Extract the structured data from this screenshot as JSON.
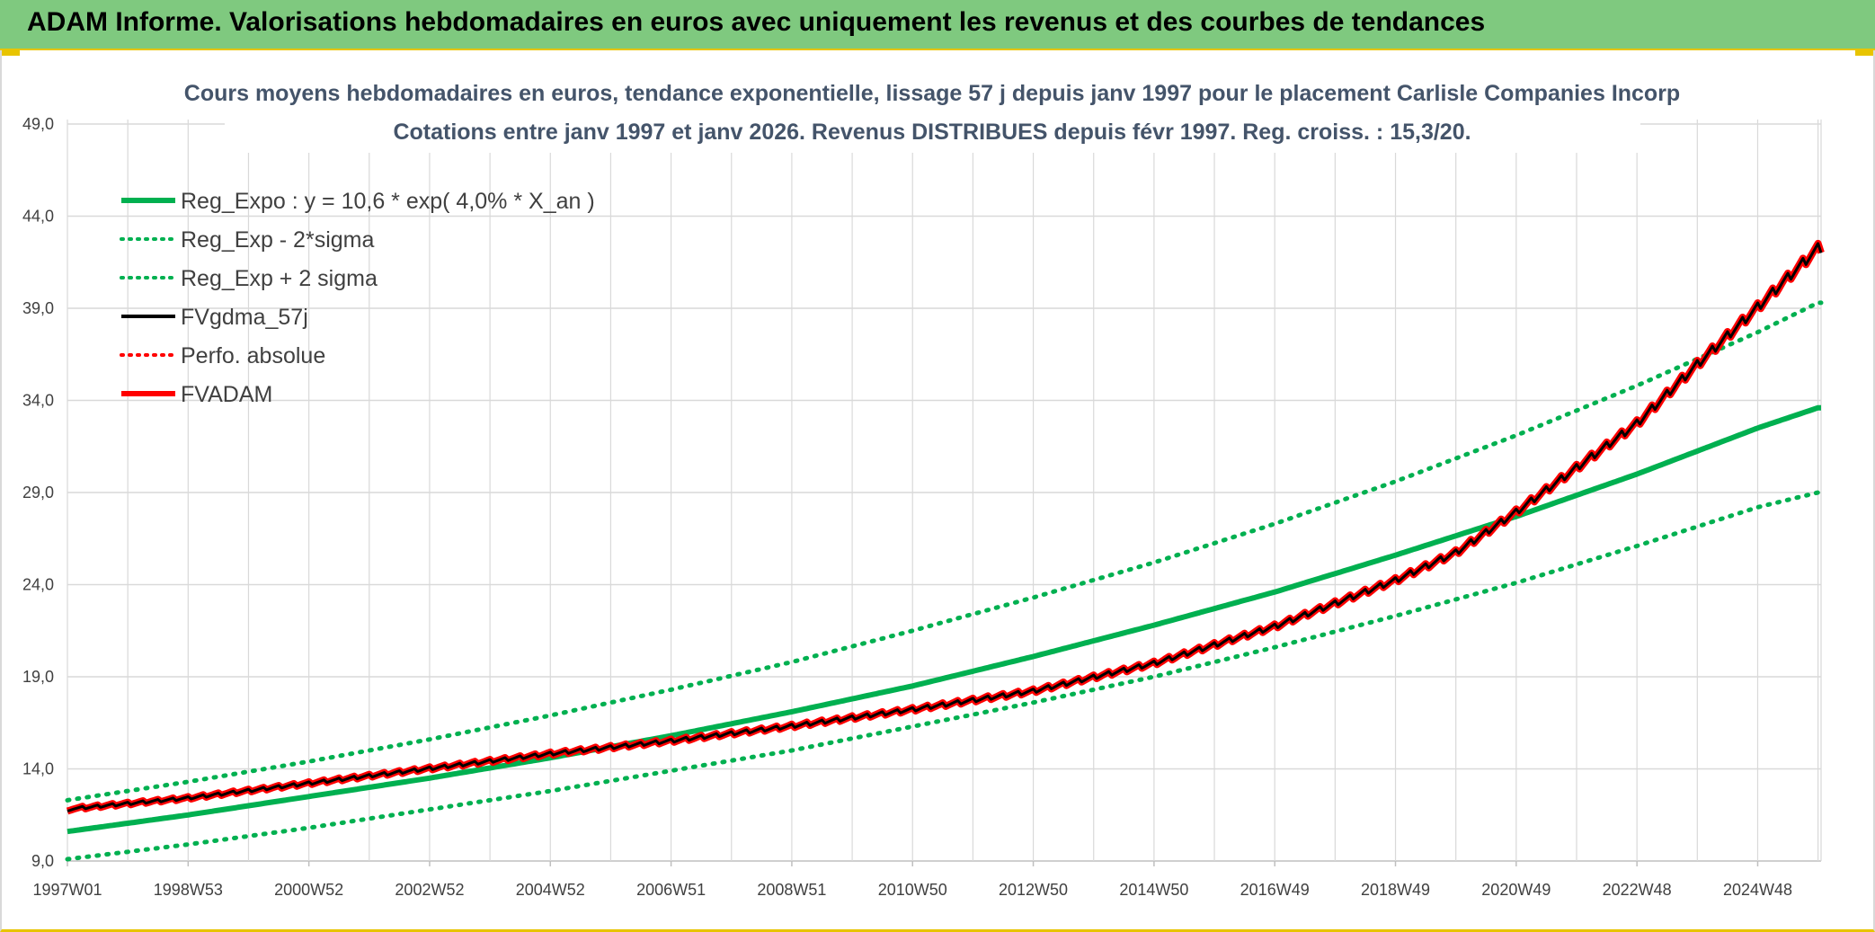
{
  "banner": {
    "title": "ADAM Informe. Valorisations hebdomadaires en euros avec uniquement les revenus et des courbes de tendances"
  },
  "colors": {
    "banner_bg": "#7fc97f",
    "accent_gold": "#e8c400",
    "green": "#00b050",
    "red": "#ff0000",
    "black": "#000000",
    "title_text": "#44546a",
    "grid": "#d9d9d9"
  },
  "chart_data": {
    "type": "line",
    "title_line1": "Cours moyens hebdomadaires en euros, tendance exponentielle, lissage 57 j depuis janv 1997 pour le placement Carlisle Companies Incorp",
    "title_line2": "Cotations entre janv 1997 et janv 2026. Revenus DISTRIBUES depuis févr 1997. Reg. croiss. : 15,3/20.",
    "ylim": [
      9.0,
      49.0
    ],
    "y_ticks": [
      "9,0",
      "14,0",
      "19,0",
      "24,0",
      "29,0",
      "34,0",
      "39,0",
      "44,0",
      "49,0"
    ],
    "y_tick_values": [
      9,
      14,
      19,
      24,
      29,
      34,
      39,
      44,
      49
    ],
    "x_range_years": [
      1997.0,
      2026.05
    ],
    "x_ticks": [
      "1997W01",
      "1998W53",
      "2000W52",
      "2002W52",
      "2004W52",
      "2006W51",
      "2008W51",
      "2010W50",
      "2012W50",
      "2014W50",
      "2016W49",
      "2018W49",
      "2020W49",
      "2022W48",
      "2024W48"
    ],
    "x_tick_years": [
      1997.0,
      1999.0,
      2001.0,
      2003.0,
      2005.0,
      2007.0,
      2009.0,
      2011.0,
      2013.0,
      2015.0,
      2017.0,
      2019.0,
      2021.0,
      2023.0,
      2025.0
    ],
    "legend_position": "top-left",
    "legend": [
      {
        "label": "Reg_Expo : y = 10,6 * exp( 4,0% *  X_an )",
        "color": "#00b050",
        "style": "solid"
      },
      {
        "label": "Reg_Exp - 2*sigma",
        "color": "#00b050",
        "style": "dotted"
      },
      {
        "label": "Reg_Exp + 2 sigma",
        "color": "#00b050",
        "style": "dotted"
      },
      {
        "label": "FVgdma_57j",
        "color": "#000000",
        "style": "solid"
      },
      {
        "label": "Perfo. absolue",
        "color": "#ff0000",
        "style": "dotted"
      },
      {
        "label": "FVADAM",
        "color": "#ff0000",
        "style": "solid"
      }
    ],
    "series": [
      {
        "name": "Reg_Expo",
        "x": [
          1997,
          1999,
          2001,
          2003,
          2005,
          2007,
          2009,
          2011,
          2013,
          2015,
          2017,
          2019,
          2021,
          2023,
          2025,
          2026
        ],
        "values": [
          10.6,
          11.5,
          12.5,
          13.5,
          14.6,
          15.8,
          17.1,
          18.5,
          20.1,
          21.8,
          23.6,
          25.6,
          27.7,
          30.0,
          32.5,
          33.6
        ]
      },
      {
        "name": "Reg_Exp - 2*sigma",
        "x": [
          1997,
          1999,
          2001,
          2003,
          2005,
          2007,
          2009,
          2011,
          2013,
          2015,
          2017,
          2019,
          2021,
          2023,
          2025,
          2026
        ],
        "values": [
          9.1,
          9.9,
          10.8,
          11.8,
          12.8,
          13.9,
          15.0,
          16.3,
          17.6,
          19.0,
          20.6,
          22.3,
          24.1,
          26.1,
          28.2,
          29.0
        ]
      },
      {
        "name": "Reg_Exp + 2 sigma",
        "x": [
          1997,
          1999,
          2001,
          2003,
          2005,
          2007,
          2009,
          2011,
          2013,
          2015,
          2017,
          2019,
          2021,
          2023,
          2025,
          2026
        ],
        "values": [
          12.3,
          13.3,
          14.4,
          15.6,
          16.9,
          18.3,
          19.8,
          21.5,
          23.3,
          25.2,
          27.3,
          29.6,
          32.1,
          34.8,
          37.7,
          39.3
        ]
      },
      {
        "name": "FVgdma_57j",
        "x": [
          1997,
          1999,
          2001,
          2003,
          2005,
          2007,
          2009,
          2011,
          2013,
          2015,
          2017,
          2019,
          2020,
          2021,
          2022,
          2023,
          2024,
          2025,
          2026
        ],
        "values": [
          11.8,
          12.4,
          13.2,
          14.0,
          14.8,
          15.5,
          16.3,
          17.2,
          18.2,
          19.7,
          21.7,
          24.2,
          25.7,
          27.9,
          30.3,
          32.7,
          35.9,
          39.0,
          42.2
        ]
      },
      {
        "name": "Perfo. absolue",
        "x": [
          1997,
          1999,
          2001,
          2003,
          2005,
          2007,
          2009,
          2011,
          2013,
          2015,
          2017,
          2019,
          2020,
          2021,
          2022,
          2023,
          2024,
          2025,
          2026
        ],
        "values": [
          11.8,
          12.4,
          13.2,
          14.0,
          14.8,
          15.5,
          16.3,
          17.2,
          18.2,
          19.7,
          21.7,
          24.2,
          25.7,
          27.9,
          30.3,
          32.7,
          35.9,
          39.0,
          42.2
        ]
      },
      {
        "name": "FVADAM",
        "x": [
          1997,
          1999,
          2001,
          2003,
          2005,
          2007,
          2009,
          2011,
          2013,
          2015,
          2017,
          2019,
          2020,
          2021,
          2022,
          2023,
          2024,
          2025,
          2026
        ],
        "values": [
          11.8,
          12.4,
          13.2,
          14.0,
          14.8,
          15.5,
          16.3,
          17.2,
          18.2,
          19.7,
          21.7,
          24.2,
          25.7,
          27.9,
          30.3,
          32.7,
          35.9,
          39.0,
          42.2
        ]
      }
    ]
  }
}
